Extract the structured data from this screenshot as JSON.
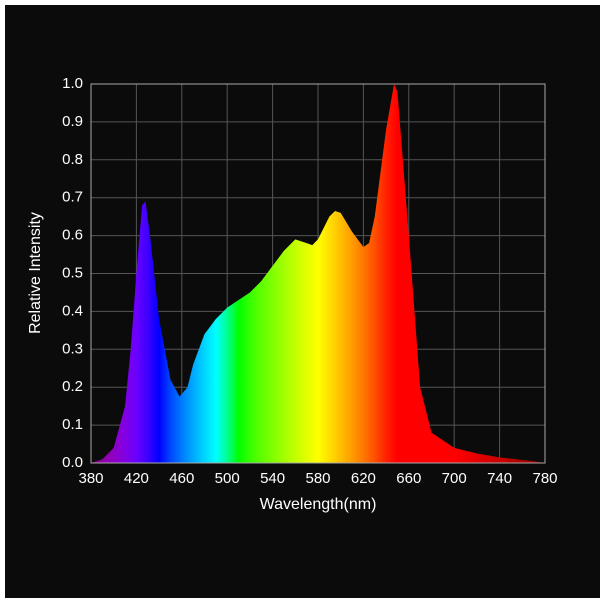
{
  "chart_data": {
    "type": "area",
    "x_label": "Wavelength(nm)",
    "y_label": "Relative Intensity",
    "x": [
      380,
      390,
      400,
      410,
      415,
      420,
      425,
      428,
      432,
      440,
      450,
      458,
      465,
      470,
      480,
      490,
      500,
      510,
      520,
      530,
      540,
      550,
      560,
      570,
      575,
      580,
      590,
      595,
      600,
      610,
      620,
      625,
      630,
      640,
      647,
      650,
      660,
      670,
      680,
      700,
      720,
      740,
      760,
      770,
      780
    ],
    "values": [
      0,
      0.01,
      0.04,
      0.15,
      0.3,
      0.5,
      0.68,
      0.69,
      0.6,
      0.38,
      0.22,
      0.175,
      0.2,
      0.26,
      0.34,
      0.38,
      0.41,
      0.43,
      0.45,
      0.48,
      0.52,
      0.56,
      0.59,
      0.58,
      0.575,
      0.59,
      0.65,
      0.665,
      0.66,
      0.61,
      0.57,
      0.58,
      0.65,
      0.88,
      1.0,
      0.98,
      0.6,
      0.2,
      0.08,
      0.04,
      0.025,
      0.015,
      0.008,
      0.005,
      0
    ],
    "xlim": [
      380,
      780
    ],
    "xticks": [
      380,
      420,
      460,
      500,
      540,
      580,
      620,
      660,
      700,
      740,
      780
    ],
    "ylim": [
      0,
      1
    ],
    "yticks": [
      {
        "value": 0,
        "label": "0.0"
      },
      0.1,
      0.2,
      0.3,
      0.4,
      0.5,
      0.6,
      0.7,
      0.8,
      0.9,
      {
        "value": 1,
        "label": "1.0"
      }
    ],
    "grid": true
  }
}
